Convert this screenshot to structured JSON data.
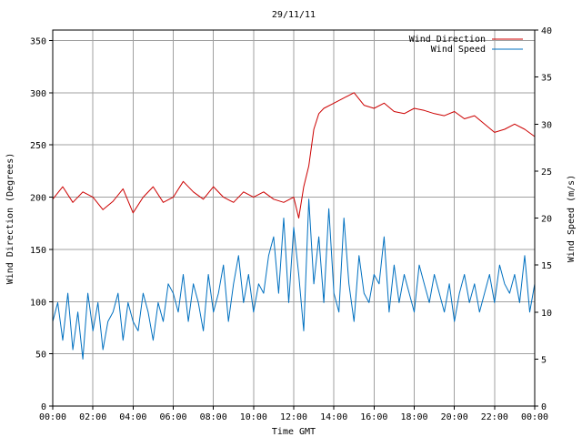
{
  "chart_data": {
    "type": "line",
    "title": "29/11/11",
    "xlabel": "Time GMT",
    "ylabel_left": "Wind Direction (Degrees)",
    "ylabel_right": "Wind Speed (m/s)",
    "x_ticks": [
      "00:00",
      "02:00",
      "04:00",
      "06:00",
      "08:00",
      "10:00",
      "12:00",
      "14:00",
      "16:00",
      "18:00",
      "20:00",
      "22:00",
      "00:00"
    ],
    "y_left_ticks": [
      0,
      50,
      100,
      150,
      200,
      250,
      300,
      350
    ],
    "y_right_ticks": [
      0,
      5,
      10,
      15,
      20,
      25,
      30,
      35,
      40
    ],
    "ylim_left": [
      0,
      360
    ],
    "ylim_right": [
      0,
      40
    ],
    "xlim_hours": [
      0,
      24
    ],
    "legend_position": "top-right",
    "grid": true,
    "series": [
      {
        "name": "Wind Direction",
        "axis": "left",
        "color": "#cc0000",
        "x": [
          0.0,
          0.5,
          1.0,
          1.5,
          2.0,
          2.5,
          3.0,
          3.5,
          4.0,
          4.5,
          5.0,
          5.5,
          6.0,
          6.5,
          7.0,
          7.5,
          8.0,
          8.5,
          9.0,
          9.5,
          10.0,
          10.5,
          11.0,
          11.5,
          12.0,
          12.25,
          12.5,
          12.75,
          13.0,
          13.25,
          13.5,
          14.0,
          14.5,
          15.0,
          15.5,
          16.0,
          16.5,
          17.0,
          17.5,
          18.0,
          18.5,
          19.0,
          19.5,
          20.0,
          20.5,
          21.0,
          21.5,
          22.0,
          22.5,
          23.0,
          23.5,
          24.0
        ],
        "values": [
          198,
          210,
          195,
          205,
          200,
          188,
          196,
          208,
          185,
          200,
          210,
          195,
          200,
          215,
          205,
          198,
          210,
          200,
          195,
          205,
          200,
          205,
          198,
          195,
          200,
          180,
          210,
          230,
          265,
          280,
          285,
          290,
          295,
          300,
          288,
          285,
          290,
          282,
          280,
          285,
          283,
          280,
          278,
          282,
          275,
          278,
          270,
          262,
          265,
          270,
          265,
          258
        ]
      },
      {
        "name": "Wind Speed",
        "axis": "right",
        "color": "#0070c0",
        "x": [
          0.0,
          0.25,
          0.5,
          0.75,
          1.0,
          1.25,
          1.5,
          1.75,
          2.0,
          2.25,
          2.5,
          2.75,
          3.0,
          3.25,
          3.5,
          3.75,
          4.0,
          4.25,
          4.5,
          4.75,
          5.0,
          5.25,
          5.5,
          5.75,
          6.0,
          6.25,
          6.5,
          6.75,
          7.0,
          7.25,
          7.5,
          7.75,
          8.0,
          8.25,
          8.5,
          8.75,
          9.0,
          9.25,
          9.5,
          9.75,
          10.0,
          10.25,
          10.5,
          10.75,
          11.0,
          11.25,
          11.5,
          11.75,
          12.0,
          12.25,
          12.5,
          12.75,
          13.0,
          13.25,
          13.5,
          13.75,
          14.0,
          14.25,
          14.5,
          14.75,
          15.0,
          15.25,
          15.5,
          15.75,
          16.0,
          16.25,
          16.5,
          16.75,
          17.0,
          17.25,
          17.5,
          17.75,
          18.0,
          18.25,
          18.5,
          18.75,
          19.0,
          19.25,
          19.5,
          19.75,
          20.0,
          20.25,
          20.5,
          20.75,
          21.0,
          21.25,
          21.5,
          21.75,
          22.0,
          22.25,
          22.5,
          22.75,
          23.0,
          23.25,
          23.5,
          23.75,
          24.0
        ],
        "values": [
          9,
          11,
          7,
          12,
          6,
          10,
          5,
          12,
          8,
          11,
          6,
          9,
          10,
          12,
          7,
          11,
          9,
          8,
          12,
          10,
          7,
          11,
          9,
          13,
          12,
          10,
          14,
          9,
          13,
          11,
          8,
          14,
          10,
          12,
          15,
          9,
          13,
          16,
          11,
          14,
          10,
          13,
          12,
          16,
          18,
          12,
          20,
          11,
          19,
          14,
          8,
          22,
          13,
          18,
          11,
          21,
          12,
          10,
          20,
          13,
          9,
          16,
          12,
          11,
          14,
          13,
          18,
          10,
          15,
          11,
          14,
          12,
          10,
          15,
          13,
          11,
          14,
          12,
          10,
          13,
          9,
          12,
          14,
          11,
          13,
          10,
          12,
          14,
          11,
          15,
          13,
          12,
          14,
          11,
          16,
          10,
          13
        ]
      }
    ]
  }
}
